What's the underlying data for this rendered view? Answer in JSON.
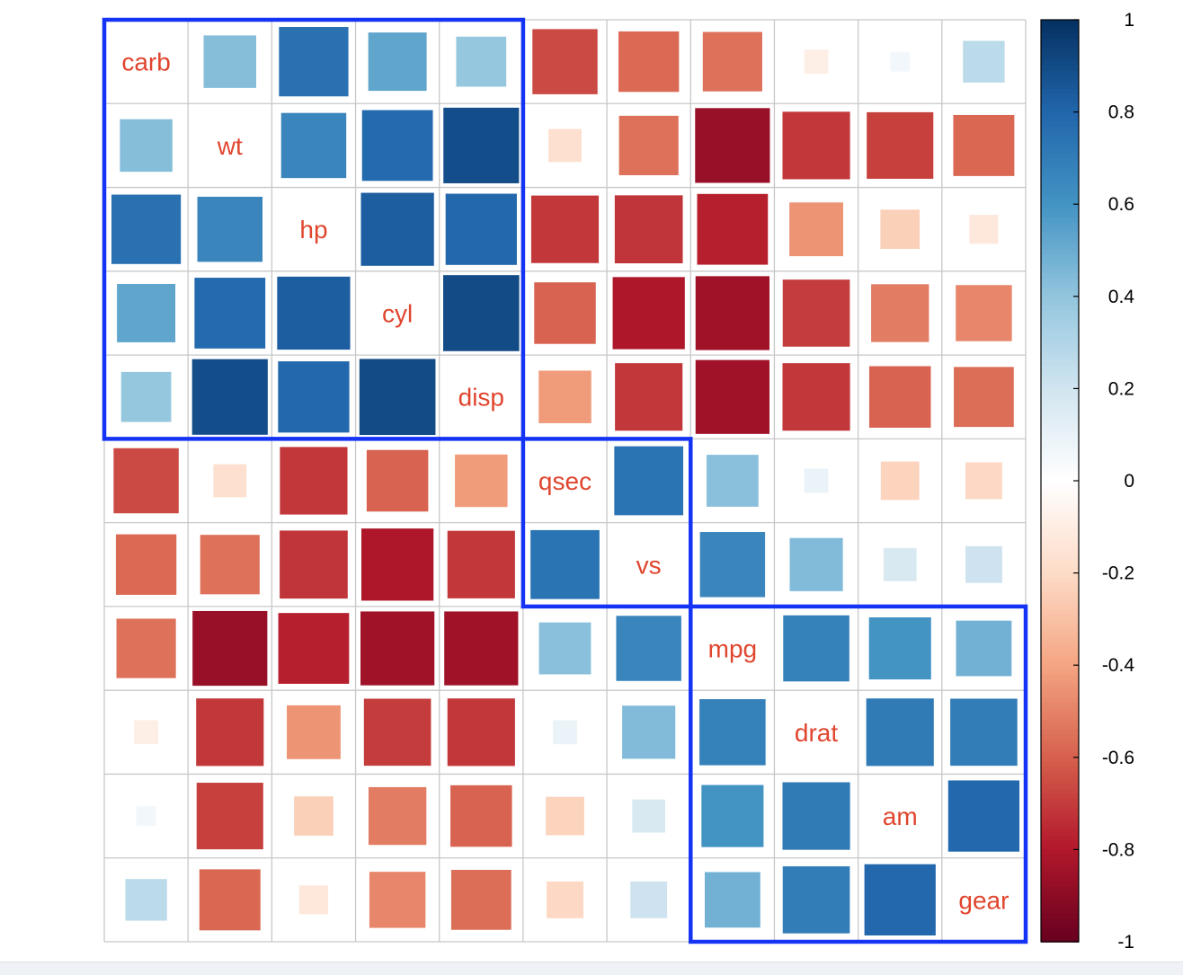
{
  "chart_data": {
    "type": "heatmap",
    "method": "square",
    "variables": [
      "carb",
      "wt",
      "hp",
      "cyl",
      "disp",
      "qsec",
      "vs",
      "mpg",
      "drat",
      "am",
      "gear"
    ],
    "correlation_matrix": [
      [
        1.0,
        0.43,
        0.75,
        0.53,
        0.39,
        -0.66,
        -0.57,
        -0.55,
        -0.09,
        0.06,
        0.27
      ],
      [
        0.43,
        1.0,
        0.66,
        0.78,
        0.89,
        -0.17,
        -0.55,
        -0.87,
        -0.71,
        -0.69,
        -0.58
      ],
      [
        0.75,
        0.66,
        1.0,
        0.83,
        0.79,
        -0.71,
        -0.72,
        -0.78,
        -0.45,
        -0.24,
        -0.13
      ],
      [
        0.53,
        0.78,
        0.83,
        1.0,
        0.9,
        -0.59,
        -0.81,
        -0.85,
        -0.7,
        -0.52,
        -0.49
      ],
      [
        0.39,
        0.89,
        0.79,
        0.9,
        1.0,
        -0.43,
        -0.71,
        -0.85,
        -0.71,
        -0.59,
        -0.56
      ],
      [
        -0.66,
        -0.17,
        -0.71,
        -0.59,
        -0.43,
        1.0,
        0.74,
        0.42,
        0.09,
        -0.23,
        -0.21
      ],
      [
        -0.57,
        -0.55,
        -0.72,
        -0.81,
        -0.71,
        0.74,
        1.0,
        0.66,
        0.44,
        0.17,
        0.21
      ],
      [
        -0.55,
        -0.87,
        -0.78,
        -0.85,
        -0.85,
        0.42,
        0.66,
        1.0,
        0.68,
        0.6,
        0.48
      ],
      [
        -0.09,
        -0.71,
        -0.45,
        -0.7,
        -0.71,
        0.09,
        0.44,
        0.68,
        1.0,
        0.71,
        0.7
      ],
      [
        0.06,
        -0.69,
        -0.24,
        -0.52,
        -0.59,
        -0.23,
        0.17,
        0.6,
        0.71,
        1.0,
        0.79
      ],
      [
        0.27,
        -0.58,
        -0.13,
        -0.49,
        -0.56,
        -0.21,
        0.21,
        0.48,
        0.7,
        0.79,
        1.0
      ]
    ],
    "clusters": [
      [
        "carb",
        "wt",
        "hp",
        "cyl",
        "disp"
      ],
      [
        "qsec",
        "vs"
      ],
      [
        "mpg",
        "drat",
        "am",
        "gear"
      ]
    ],
    "colorbar": {
      "range": [
        -1,
        1
      ],
      "tick_labels": [
        "1",
        "0.8",
        "0.6",
        "0.4",
        "0.2",
        "0",
        "-0.2",
        "-0.4",
        "-0.6",
        "-0.8",
        "-1"
      ]
    },
    "label_color": "#e0452e",
    "cluster_rect_color": "#1433f5",
    "grid_color": "#c8c8c8",
    "palette": [
      "#67001f",
      "#b2182b",
      "#d6604d",
      "#f4a582",
      "#fddbc7",
      "#ffffff",
      "#d1e5f0",
      "#92c5de",
      "#4393c3",
      "#2166ac",
      "#053061"
    ],
    "legend": "right",
    "grid": true
  }
}
